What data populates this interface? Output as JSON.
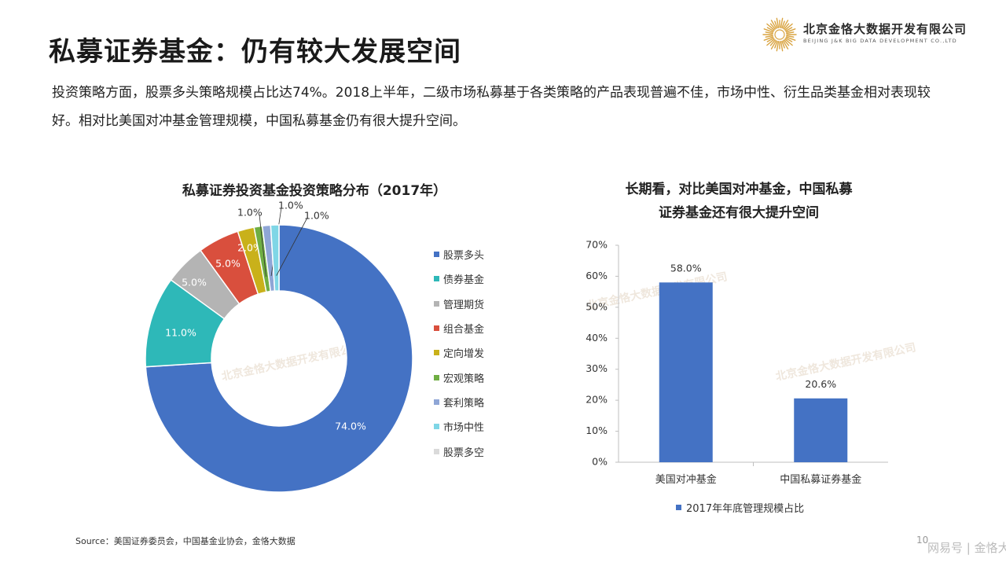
{
  "title": "私募证券基金：仍有较大发展空间",
  "logo": {
    "company_cn": "北京金恪大数据开发有限公司",
    "company_en": "BEIJING J&K BIG DATA DEVELOPMENT CO.,LTD"
  },
  "intro": "投资策略方面，股票多头策略规模占比达74%。2018上半年，二级市场私募基于各类策略的产品表现普遍不佳，市场中性、衍生品类基金相对表现较好。相对比美国对冲基金管理规模，中国私募基金仍有很大提升空间。",
  "chart_data": [
    {
      "type": "pie",
      "title": "私募证券投资基金投资策略分布（2017年）",
      "categories": [
        "股票多头",
        "债券基金",
        "管理期货",
        "组合基金",
        "定向增发",
        "宏观策略",
        "套利策略",
        "市场中性",
        "股票多空"
      ],
      "values": [
        74.0,
        11.0,
        5.0,
        5.0,
        2.0,
        1.0,
        1.0,
        1.0,
        0.0
      ],
      "data_labels": [
        "74.0%",
        "11.0%",
        "5.0%",
        "5.0%",
        "2.0%",
        "1.0%",
        "1.0%",
        "1.0%",
        ""
      ],
      "colors": [
        "#4472C4",
        "#2EB8B8",
        "#B4B4B4",
        "#D94F3D",
        "#C9B11A",
        "#6FAE43",
        "#8FA6D6",
        "#7FD6E6",
        "#DADADA"
      ],
      "legend": "right",
      "donut": true
    },
    {
      "type": "bar",
      "title_lines": [
        "长期看，对比美国对冲基金，中国私募",
        "证券基金还有很大提升空间"
      ],
      "categories": [
        "美国对冲基金",
        "中国私募证券基金"
      ],
      "series": [
        {
          "name": "2017年年底管理规模占比",
          "values": [
            58.0,
            20.6
          ]
        }
      ],
      "data_labels": [
        "58.0%",
        "20.6%"
      ],
      "ylim": [
        0,
        70
      ],
      "yticks": [
        "0%",
        "10%",
        "20%",
        "30%",
        "40%",
        "50%",
        "60%",
        "70%"
      ],
      "color": "#4472C4",
      "legend": "bottom"
    }
  ],
  "source": "Source：美国证券委员会，中国基金业协会，金恪大数据",
  "page_number": "10",
  "footer_brand": "网易号 | 金恪大数据",
  "watermark": "北京金恪大数据开发有限公司"
}
